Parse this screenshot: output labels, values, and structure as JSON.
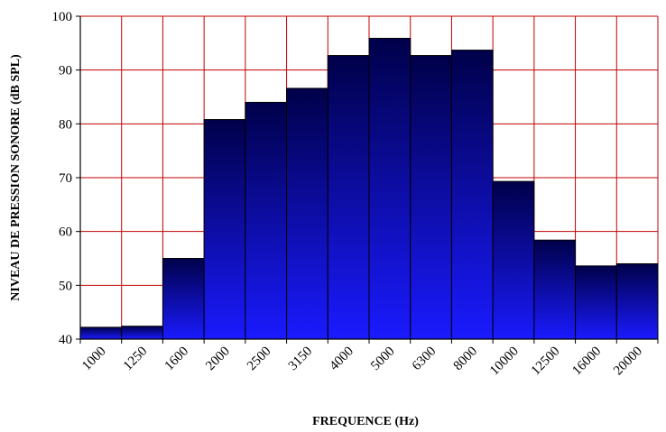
{
  "chart_data": {
    "type": "bar",
    "title": "",
    "xlabel": "FREQUENCE (Hz)",
    "ylabel": "NIVEAU  DE PRESSION SONORE (dB SPL)",
    "categories": [
      "1000",
      "1250",
      "1600",
      "2000",
      "2500",
      "3150",
      "4000",
      "5000",
      "6300",
      "8000",
      "10000",
      "12500",
      "16000",
      "20000"
    ],
    "values": [
      42.2,
      42.4,
      55.0,
      80.8,
      84.0,
      86.6,
      92.7,
      95.9,
      92.7,
      93.7,
      69.3,
      58.4,
      53.6,
      54.0
    ],
    "ylim": [
      40,
      100
    ],
    "yticks": [
      40,
      50,
      60,
      70,
      80,
      90,
      100
    ],
    "grid": true,
    "colors": {
      "grid": "#c00000",
      "bar_top": "#00004a",
      "bar_bottom": "#1a1aff",
      "bar_edge": "#000000"
    }
  }
}
